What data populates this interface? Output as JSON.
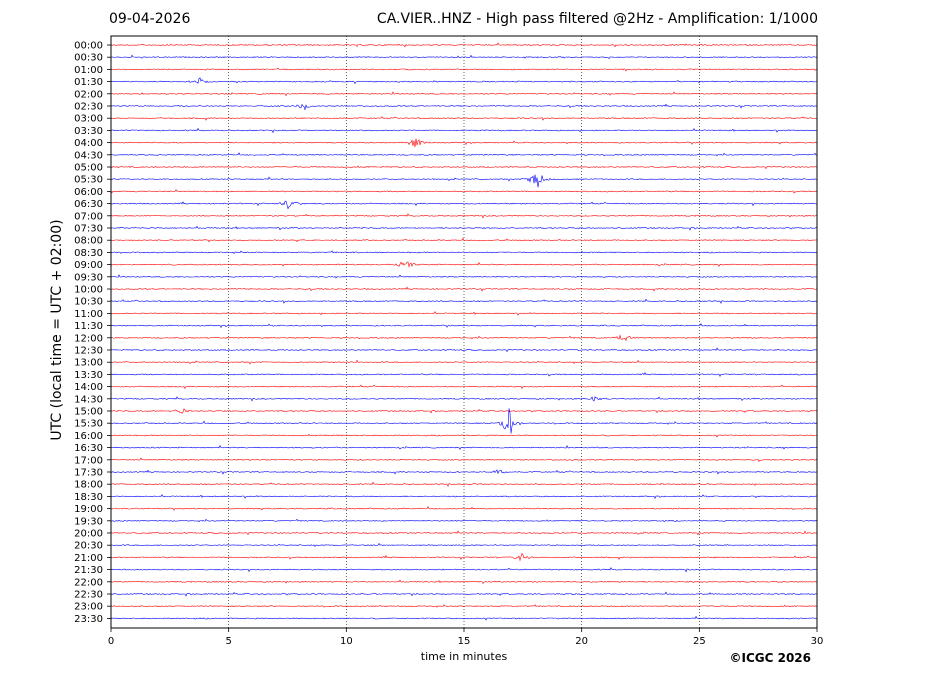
{
  "header": {
    "date": "09-04-2026",
    "title": "CA.VIER..HNZ - High pass filtered @2Hz - Amplification: 1/1000"
  },
  "footer": {
    "copyright": "©ICGC 2026"
  },
  "chart_data": {
    "type": "line",
    "title": "CA.VIER..HNZ - High pass filtered @2Hz - Amplification: 1/1000",
    "xlabel": "time in minutes",
    "ylabel": "UTC (local time = UTC + 02:00)",
    "xlim": [
      0,
      30
    ],
    "x_ticks": [
      0,
      5,
      10,
      15,
      20,
      25,
      30
    ],
    "grid": "vertical dotted lines at 5-minute intervals",
    "trace_colors": [
      "#ff0000",
      "#0000ff"
    ],
    "rows": [
      "00:00",
      "00:30",
      "01:00",
      "01:30",
      "02:00",
      "02:30",
      "03:00",
      "03:30",
      "04:00",
      "04:30",
      "05:00",
      "05:30",
      "06:00",
      "06:30",
      "07:00",
      "07:30",
      "08:00",
      "08:30",
      "09:00",
      "09:30",
      "10:00",
      "10:30",
      "11:00",
      "11:30",
      "12:00",
      "12:30",
      "13:00",
      "13:30",
      "14:00",
      "14:30",
      "15:00",
      "15:30",
      "16:00",
      "16:30",
      "17:00",
      "17:30",
      "18:00",
      "18:30",
      "19:00",
      "19:30",
      "20:00",
      "20:30",
      "21:00",
      "21:30",
      "22:00",
      "22:30",
      "23:00",
      "23:30"
    ],
    "events": [
      {
        "row": "01:30",
        "minute": 3.8,
        "amplitude": 5
      },
      {
        "row": "02:30",
        "minute": 8.2,
        "amplitude": 6
      },
      {
        "row": "04:00",
        "minute": 12.9,
        "amplitude": 6
      },
      {
        "row": "05:30",
        "minute": 18.1,
        "amplitude": 10
      },
      {
        "row": "06:30",
        "minute": 7.6,
        "amplitude": 7
      },
      {
        "row": "09:00",
        "minute": 12.5,
        "amplitude": 7
      },
      {
        "row": "12:00",
        "minute": 21.8,
        "amplitude": 7
      },
      {
        "row": "14:30",
        "minute": 20.6,
        "amplitude": 4
      },
      {
        "row": "15:00",
        "minute": 3.0,
        "amplitude": 4
      },
      {
        "row": "15:30",
        "minute": 16.9,
        "amplitude": 16
      },
      {
        "row": "17:30",
        "minute": 16.5,
        "amplitude": 4
      },
      {
        "row": "21:00",
        "minute": 17.4,
        "amplitude": 5
      }
    ]
  }
}
